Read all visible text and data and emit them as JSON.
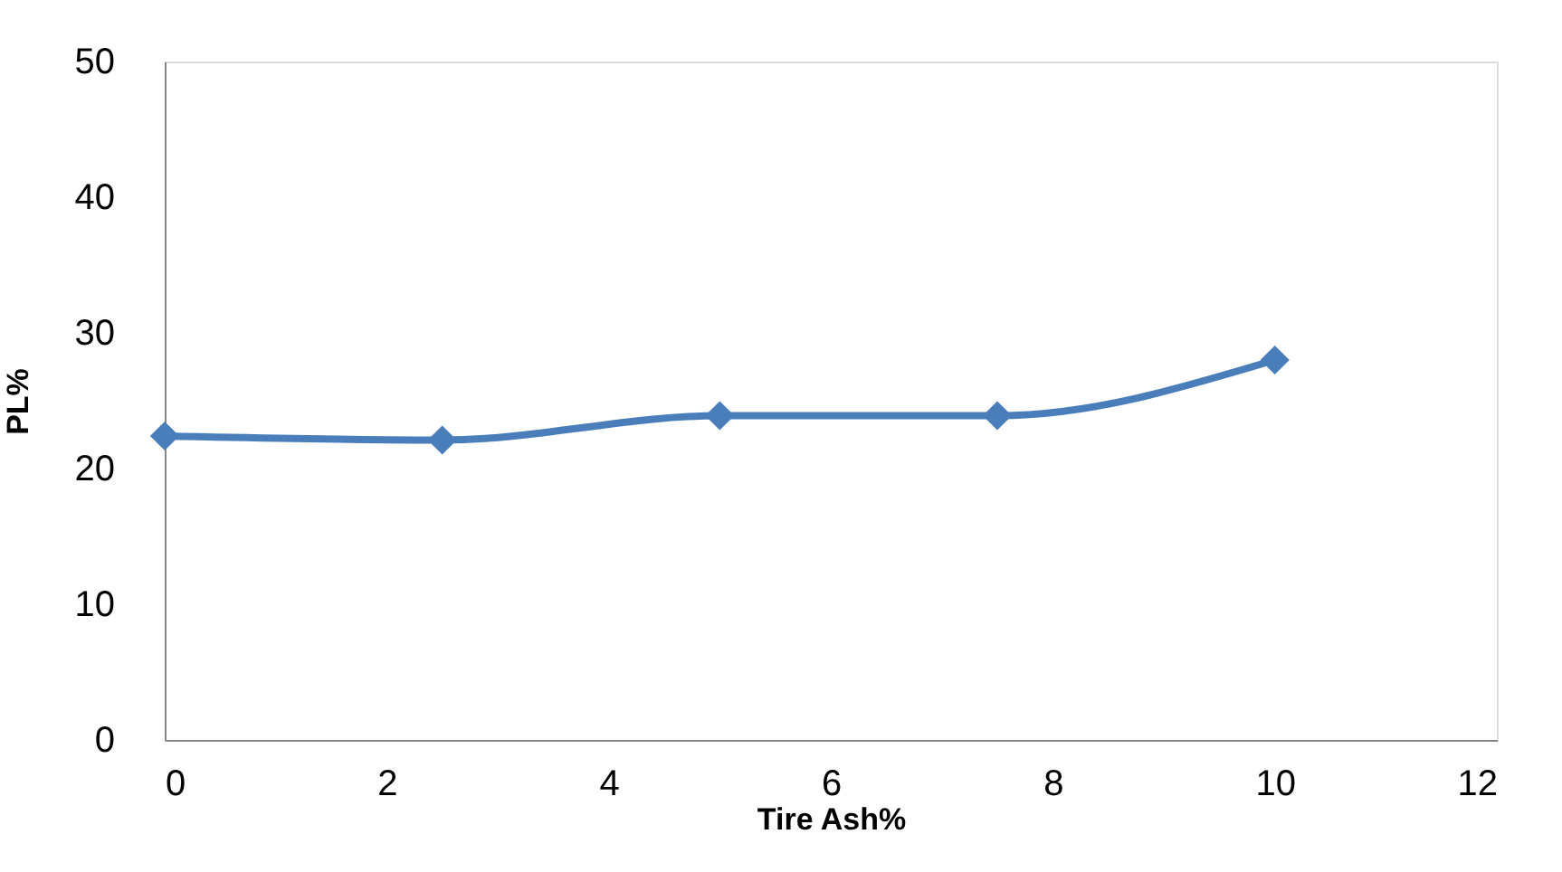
{
  "chart_data": {
    "type": "line",
    "xlabel": "Tire Ash%",
    "ylabel": "PL%",
    "x": [
      0,
      2.5,
      5,
      7.5,
      10
    ],
    "series": [
      {
        "color": "#4a7ebb",
        "values": [
          22.4,
          22.1,
          23.9,
          23.9,
          28.0
        ]
      }
    ],
    "xlim": [
      0,
      12
    ],
    "xticks": [
      0,
      2,
      4,
      6,
      8,
      10,
      12
    ],
    "ylim": [
      0,
      50
    ],
    "yticks": [
      0,
      10,
      20,
      30,
      40,
      50
    ],
    "grid": false,
    "legend": false,
    "marker": "diamond",
    "line_style": "solid"
  }
}
